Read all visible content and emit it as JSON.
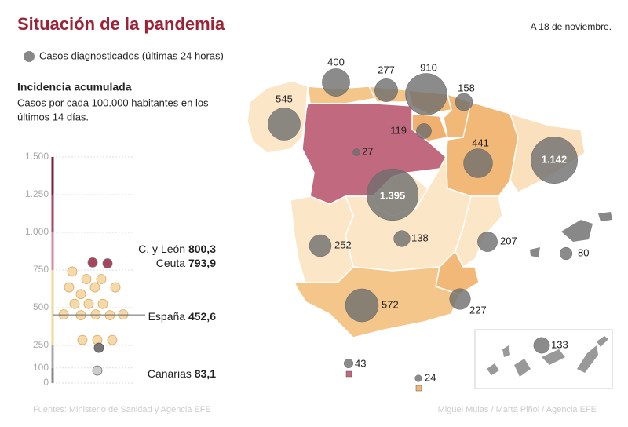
{
  "header": {
    "title": "Situación de la pandemia",
    "date": "A 18 de noviembre."
  },
  "legend": {
    "label": "Casos diagnosticados (últimas 24 horas)"
  },
  "incidence": {
    "title": "Incidencia acumulada",
    "subtitle_1": "Casos por cada 100.000 habitantes en los",
    "subtitle_2": "últimos 14 días.",
    "ylim": [
      0,
      1500
    ],
    "ticks": [
      {
        "value": 1500,
        "label": "1.500"
      },
      {
        "value": 1250,
        "label": "1.250"
      },
      {
        "value": 1000,
        "label": "1.000"
      },
      750,
      500,
      250,
      100,
      0
    ],
    "highlights": [
      {
        "name": "C. y León",
        "value": 800.3,
        "value_label": "800,3"
      },
      {
        "name": "Ceuta",
        "value": 793.9,
        "value_label": "793,9"
      },
      {
        "name": "España",
        "value": 452.6,
        "value_label": "452,6"
      },
      {
        "name": "Canarias",
        "value": 83.1,
        "value_label": "83,1"
      }
    ],
    "dots": [
      740,
      690,
      690,
      635,
      635,
      635,
      590,
      525,
      525,
      525,
      455,
      450,
      455,
      450,
      455,
      286,
      286,
      286,
      234
    ]
  },
  "cases": {
    "values": [
      400,
      277,
      910,
      158,
      545,
      119,
      27,
      441,
      1142,
      1395,
      252,
      138,
      207,
      80,
      572,
      227,
      43,
      24,
      133
    ],
    "value_labels": [
      "400",
      "277",
      "910",
      "158",
      "545",
      "119",
      "27",
      "441",
      "1.142",
      "1.395",
      "252",
      "138",
      "207",
      "80",
      "572",
      "227",
      "43",
      "24",
      "133"
    ]
  },
  "footer": {
    "sources": "Fuentes: Ministerio de Sanidad y Agencia EFE",
    "credits": "Miguel Mulas / Marta Piñol / Agencia EFE"
  }
}
